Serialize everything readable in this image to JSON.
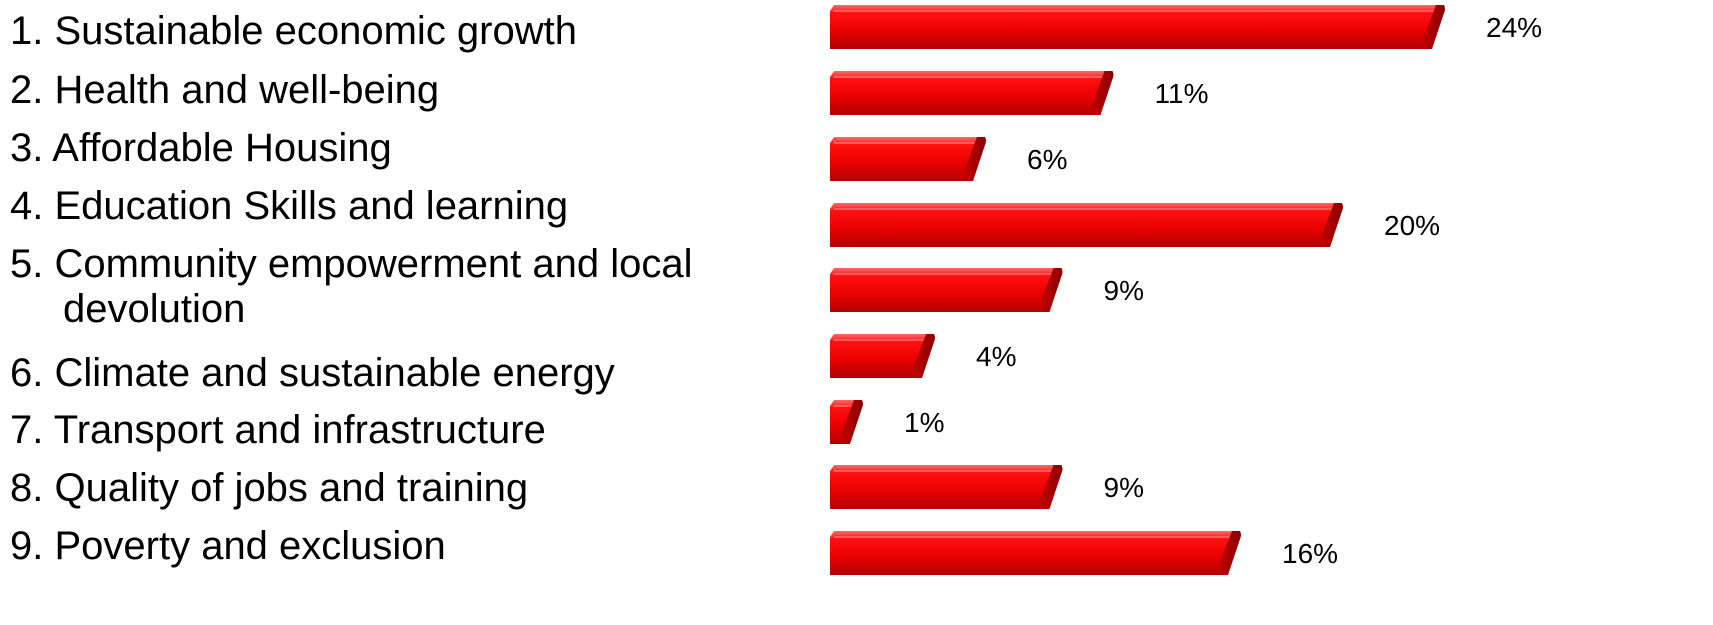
{
  "chart_data": {
    "type": "bar",
    "orientation": "horizontal",
    "style": "3d-cylinder",
    "categories": [
      [
        "1. Sustainable economic growth"
      ],
      [
        "2. Health and well-being"
      ],
      [
        "3. Affordable Housing"
      ],
      [
        "4. Education Skills and learning"
      ],
      [
        "5. Community empowerment and local",
        "devolution"
      ],
      [
        "6. Climate and sustainable energy"
      ],
      [
        "7. Transport and infrastructure"
      ],
      [
        "8. Quality of jobs and training"
      ],
      [
        "9. Poverty and exclusion"
      ]
    ],
    "values": [
      24,
      11,
      6,
      20,
      9,
      4,
      1,
      9,
      16
    ],
    "value_labels": [
      "24%",
      "11%",
      "6%",
      "20%",
      "9%",
      "4%",
      "1%",
      "9%",
      "16%"
    ],
    "unit": "%",
    "xlim": [
      0,
      24
    ],
    "grid": false,
    "legend": "none",
    "bar_color": "#ee0000",
    "bar_highlight": "#ff5050",
    "bar_shadow": "#a00000"
  }
}
